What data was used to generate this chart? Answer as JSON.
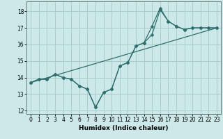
{
  "title": "",
  "xlabel": "Humidex (Indice chaleur)",
  "bg_color": "#cce8e8",
  "grid_color": "#aacccc",
  "line_color": "#2e6e6e",
  "xlim": [
    -0.5,
    23.5
  ],
  "ylim": [
    11.8,
    18.6
  ],
  "xticks": [
    0,
    1,
    2,
    3,
    4,
    5,
    6,
    7,
    8,
    9,
    10,
    11,
    12,
    13,
    14,
    15,
    16,
    17,
    18,
    19,
    20,
    21,
    22,
    23
  ],
  "yticks": [
    12,
    13,
    14,
    15,
    16,
    17,
    18
  ],
  "line1_x": [
    0,
    1,
    2,
    3,
    4,
    5,
    6,
    7,
    8,
    9,
    10,
    11,
    12,
    13,
    14,
    15,
    16,
    17,
    18,
    19,
    20,
    21,
    22,
    23
  ],
  "line1_y": [
    13.7,
    13.9,
    13.9,
    14.2,
    14.0,
    13.9,
    13.5,
    13.3,
    12.2,
    13.1,
    13.3,
    14.7,
    14.9,
    15.9,
    16.1,
    16.6,
    18.1,
    17.4,
    17.1,
    16.9,
    17.0,
    17.0,
    17.0,
    17.0
  ],
  "line2_x": [
    0,
    1,
    2,
    3,
    4,
    5,
    6,
    7,
    8,
    9,
    10,
    11,
    12,
    13,
    14,
    15,
    16,
    17,
    18,
    19,
    20,
    21,
    22,
    23
  ],
  "line2_y": [
    13.7,
    13.9,
    13.9,
    14.2,
    14.0,
    13.9,
    13.5,
    13.3,
    12.2,
    13.1,
    13.3,
    14.7,
    14.9,
    15.9,
    16.1,
    17.1,
    18.2,
    17.4,
    17.1,
    16.9,
    17.0,
    17.0,
    17.0,
    17.0
  ],
  "line3_x": [
    0,
    23
  ],
  "line3_y": [
    13.7,
    17.0
  ],
  "marker_size": 2.5,
  "linewidth": 0.9,
  "font_size_axis": 6.5,
  "font_size_tick": 5.5
}
